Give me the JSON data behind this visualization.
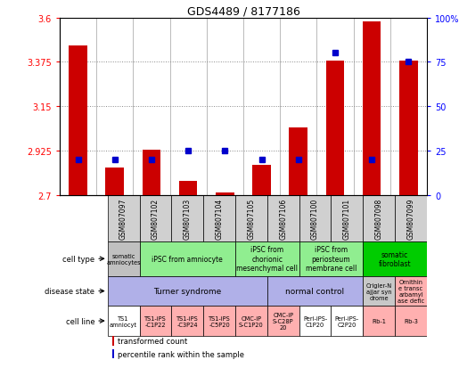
{
  "title": "GDS4489 / 8177186",
  "samples": [
    "GSM807097",
    "GSM807102",
    "GSM807103",
    "GSM807104",
    "GSM807105",
    "GSM807106",
    "GSM807100",
    "GSM807101",
    "GSM807098",
    "GSM807099"
  ],
  "bar_values": [
    3.46,
    2.84,
    2.93,
    2.77,
    2.71,
    2.85,
    3.04,
    3.38,
    3.58,
    3.38
  ],
  "percentile_values": [
    20,
    20,
    20,
    25,
    25,
    20,
    20,
    80,
    20,
    75
  ],
  "ylim_left": [
    2.7,
    3.6
  ],
  "ylim_right": [
    0,
    100
  ],
  "yticks_left": [
    2.7,
    2.925,
    3.15,
    3.375,
    3.6
  ],
  "yticks_right": [
    0,
    25,
    50,
    75,
    100
  ],
  "bar_color": "#cc0000",
  "percentile_color": "#0000cc",
  "cell_type_row": {
    "groups": [
      {
        "label": "somatic\namniocytes",
        "start": 0,
        "end": 1,
        "color": "#c0c0c0"
      },
      {
        "label": "iPSC from amniocyte",
        "start": 1,
        "end": 4,
        "color": "#90ee90"
      },
      {
        "label": "iPSC from\nchorionic\nmesenchymal cell",
        "start": 4,
        "end": 6,
        "color": "#90ee90"
      },
      {
        "label": "iPSC from\nperiosteum\nmembrane cell",
        "start": 6,
        "end": 8,
        "color": "#90ee90"
      },
      {
        "label": "somatic\nfibroblast",
        "start": 8,
        "end": 10,
        "color": "#00cc00"
      }
    ]
  },
  "disease_state_row": {
    "groups": [
      {
        "label": "Turner syndrome",
        "start": 0,
        "end": 5,
        "color": "#b0b0e8"
      },
      {
        "label": "normal control",
        "start": 5,
        "end": 8,
        "color": "#b0b0e8"
      },
      {
        "label": "Crigler-N\najjar syn\ndrome",
        "start": 8,
        "end": 9,
        "color": "#c8c8c8"
      },
      {
        "label": "Ornithin\ne transc\narbamyl\nase defic",
        "start": 9,
        "end": 10,
        "color": "#ffb0b0"
      }
    ]
  },
  "cell_line_row": {
    "groups": [
      {
        "label": "TS1\namniocyt",
        "start": 0,
        "end": 1,
        "color": "#ffffff"
      },
      {
        "label": "TS1-iPS\n-C1P22",
        "start": 1,
        "end": 2,
        "color": "#ffb0b0"
      },
      {
        "label": "TS1-iPS\n-C3P24",
        "start": 2,
        "end": 3,
        "color": "#ffb0b0"
      },
      {
        "label": "TS1-iPS\n-C5P20",
        "start": 3,
        "end": 4,
        "color": "#ffb0b0"
      },
      {
        "label": "CMC-iP\nS-C1P20",
        "start": 4,
        "end": 5,
        "color": "#ffb0b0"
      },
      {
        "label": "CMC-iP\nS-C28P\n20",
        "start": 5,
        "end": 6,
        "color": "#ffb0b0"
      },
      {
        "label": "Peri-iPS-\nC1P20",
        "start": 6,
        "end": 7,
        "color": "#ffffff"
      },
      {
        "label": "Peri-iPS-\nC2P20",
        "start": 7,
        "end": 8,
        "color": "#ffffff"
      },
      {
        "label": "Fib-1",
        "start": 8,
        "end": 9,
        "color": "#ffb0b0"
      },
      {
        "label": "Fib-3",
        "start": 9,
        "end": 10,
        "color": "#ffb0b0"
      }
    ]
  },
  "row_labels": [
    "cell type",
    "disease state",
    "cell line"
  ],
  "legend_red": "transformed count",
  "legend_blue": "percentile rank within the sample",
  "sample_box_color": "#d0d0d0"
}
